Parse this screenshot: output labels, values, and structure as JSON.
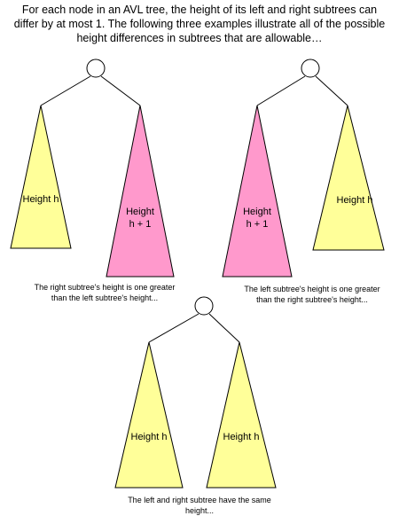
{
  "intro": {
    "line1": "For each node in an AVL tree, the height of its left and right subtrees can",
    "line2": "differ by at most 1.  The following three examples illustrate all of the possible",
    "line3": "height differences in subtrees that are allowable…"
  },
  "colors": {
    "yellow": "#ffff99",
    "pink": "#ff99cc",
    "stroke": "#000000",
    "node_fill": "#ffffff"
  },
  "examples": [
    {
      "left": {
        "label1": "Height h",
        "label2": "",
        "color": "#ffff99"
      },
      "right": {
        "label1": "Height",
        "label2": "h + 1",
        "color": "#ff99cc"
      },
      "caption1": "The right subtree's height is one greater",
      "caption2": "than the left subtree's height..."
    },
    {
      "left": {
        "label1": "Height",
        "label2": "h + 1",
        "color": "#ff99cc"
      },
      "right": {
        "label1": "Height h",
        "label2": "",
        "color": "#ffff99"
      },
      "caption1": "The left subtree's height is one greater",
      "caption2": "than the right subtree's height..."
    },
    {
      "left": {
        "label1": "Height h",
        "label2": "",
        "color": "#ffff99"
      },
      "right": {
        "label1": "Height h",
        "label2": "",
        "color": "#ffff99"
      },
      "caption1": "The left and right subtree have the same",
      "caption2": "height..."
    }
  ]
}
